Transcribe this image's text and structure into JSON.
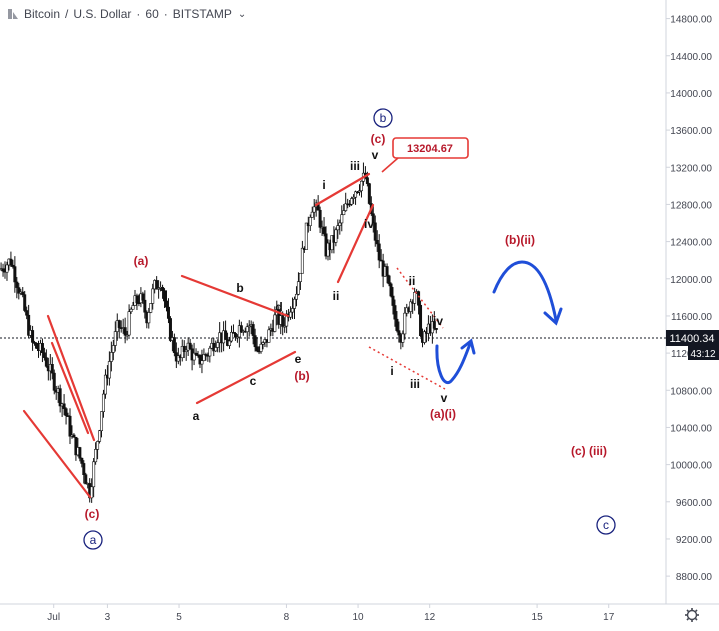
{
  "header": {
    "symbol": "Bitcoin",
    "sep1": "/",
    "quote": "U.S. Dollar",
    "sep2": "·",
    "interval": "60",
    "sep3": "·",
    "exchange": "BITSTAMP",
    "chevron": "⌄",
    "logo_icon": "tradingview-logo-icon"
  },
  "chart_data": {
    "type": "candlestick",
    "ylim": [
      8500,
      15000
    ],
    "y_ticks": [
      8800,
      9200,
      9600,
      10000,
      10400,
      10800,
      11200,
      11600,
      12000,
      12400,
      12800,
      13200,
      13600,
      14000,
      14400,
      14800
    ],
    "x_range": [
      0,
      18.6
    ],
    "x_ticks": [
      {
        "x": 1.5,
        "label": "Jul"
      },
      {
        "x": 3,
        "label": "3"
      },
      {
        "x": 5,
        "label": "5"
      },
      {
        "x": 8,
        "label": "8"
      },
      {
        "x": 10,
        "label": "10"
      },
      {
        "x": 12,
        "label": "12"
      },
      {
        "x": 15,
        "label": "15"
      },
      {
        "x": 17,
        "label": "17"
      }
    ],
    "last_price": "11400.34",
    "countdown": "43:12",
    "price_path": [
      [
        0.0,
        12100
      ],
      [
        0.3,
        12200
      ],
      [
        0.6,
        11800
      ],
      [
        0.9,
        11300
      ],
      [
        1.2,
        11200
      ],
      [
        1.5,
        10900
      ],
      [
        1.8,
        10600
      ],
      [
        2.0,
        10300
      ],
      [
        2.3,
        10000
      ],
      [
        2.5,
        9700
      ],
      [
        2.7,
        10200
      ],
      [
        2.9,
        10800
      ],
      [
        3.1,
        11200
      ],
      [
        3.3,
        11500
      ],
      [
        3.5,
        11400
      ],
      [
        3.7,
        11700
      ],
      [
        3.9,
        11800
      ],
      [
        4.1,
        11600
      ],
      [
        4.3,
        11900
      ],
      [
        4.5,
        12000
      ],
      [
        4.7,
        11500
      ],
      [
        4.9,
        11200
      ],
      [
        5.0,
        11100
      ],
      [
        5.2,
        11300
      ],
      [
        5.5,
        11100
      ],
      [
        5.8,
        11200
      ],
      [
        6.1,
        11400
      ],
      [
        6.4,
        11300
      ],
      [
        6.7,
        11500
      ],
      [
        7.0,
        11500
      ],
      [
        7.2,
        11200
      ],
      [
        7.4,
        11300
      ],
      [
        7.7,
        11600
      ],
      [
        7.9,
        11500
      ],
      [
        8.1,
        11700
      ],
      [
        8.3,
        11900
      ],
      [
        8.5,
        12400
      ],
      [
        8.7,
        12800
      ],
      [
        8.9,
        12700
      ],
      [
        9.1,
        12300
      ],
      [
        9.3,
        12400
      ],
      [
        9.6,
        12700
      ],
      [
        9.8,
        12900
      ],
      [
        10.0,
        13000
      ],
      [
        10.2,
        13100
      ],
      [
        10.4,
        12600
      ],
      [
        10.6,
        12200
      ],
      [
        10.8,
        12000
      ],
      [
        11.0,
        11600
      ],
      [
        11.2,
        11400
      ],
      [
        11.4,
        11700
      ],
      [
        11.6,
        11900
      ],
      [
        11.8,
        11300
      ],
      [
        12.0,
        11500
      ],
      [
        12.2,
        11400
      ]
    ]
  },
  "annotations": {
    "price_callout": "13204.67",
    "wave_a_circle": "a",
    "wave_b_circle": "b",
    "wave_c_circle": "c",
    "a_paren": "(a)",
    "b_paren": "(b)",
    "c_paren_low": "(c)",
    "c_paren_top": "(c)",
    "a_sub": "a",
    "b_sub": "b",
    "c_sub": "c",
    "d_sub": "d",
    "e_sub": "e",
    "i_up": "i",
    "ii_up": "ii",
    "iii_up": "iii",
    "iv_up": "iv",
    "v_up": "v",
    "i_down": "i",
    "ii_down": "ii",
    "iii_down": "iii",
    "iv_down": "iv",
    "v_down": "v",
    "a_i": "(a)(i)",
    "b_ii": "(b)(ii)",
    "c_iii": "(c) (iii)"
  },
  "colors": {
    "wave_red": "#b7182a",
    "line_red": "#e53935",
    "projection_blue": "#1f4ed8",
    "circle_blue": "#1a237e",
    "candle": "#111111",
    "axis_text": "#434651",
    "last_price_bg": "#131722"
  },
  "footer": {
    "settings_icon": "gear-icon"
  }
}
